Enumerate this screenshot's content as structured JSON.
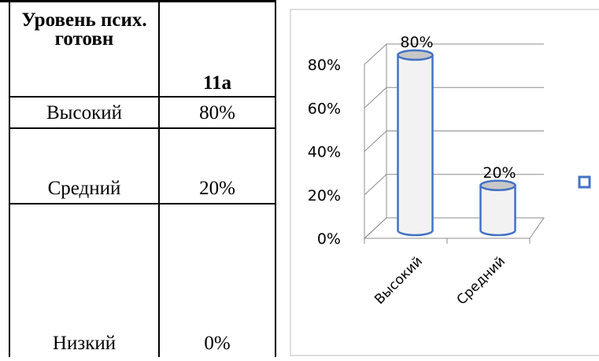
{
  "table": {
    "header": {
      "level_label": "Уровень псих. готовн",
      "class_label": "11а"
    },
    "rows": [
      {
        "level": "Высокий",
        "value": "80%"
      },
      {
        "level": "Средний",
        "value": "20%"
      },
      {
        "level": "Низкий",
        "value": "0%"
      }
    ]
  },
  "chart_data": {
    "type": "bar",
    "style": "3d-cylinder",
    "categories": [
      "Высокий",
      "Средний"
    ],
    "series": [
      {
        "values": [
          80,
          20
        ]
      }
    ],
    "data_labels": [
      "80%",
      "20%"
    ],
    "ylim": [
      0,
      80
    ],
    "yticks": [
      "0%",
      "20%",
      "40%",
      "60%",
      "80%"
    ],
    "grid": true,
    "legend": "right",
    "colors": {
      "bar_fill": "#f2f2f2",
      "bar_outline": "#4472c4",
      "top_fill": "#c7c7c7",
      "grid": "#8c8c8c",
      "legend_marker": "#4472c4"
    }
  }
}
